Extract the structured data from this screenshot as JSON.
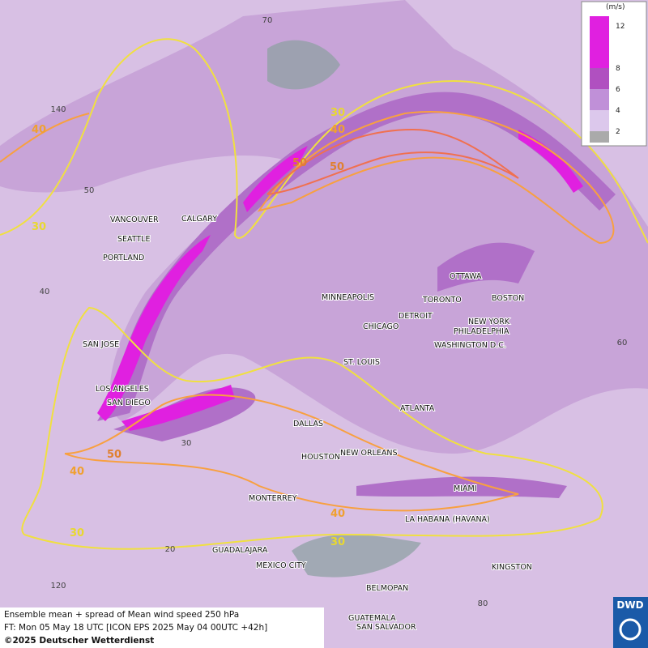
{
  "legend": {
    "unit": "(m/s)",
    "levels": [
      12,
      8,
      6,
      4,
      2
    ]
  },
  "cities": [
    "VANCOUVER",
    "CALGARY",
    "SEATTLE",
    "PORTLAND",
    "MINNEAPOLIS",
    "TORONTO",
    "OTTAWA",
    "BOSTON",
    "DETROIT",
    "CHICAGO",
    "NEW YORK",
    "PHILADELPHIA",
    "WASHINGTON D.C.",
    "SAN JOSE",
    "ST. LOUIS",
    "LOS ANGELES",
    "SAN DIEGO",
    "ATLANTA",
    "DALLAS",
    "HOUSTON",
    "NEW ORLEANS",
    "MIAMI",
    "MONTERREY",
    "LA HABANA (HAVANA)",
    "GUADALAJARA",
    "MEXICO CITY",
    "KINGSTON",
    "BELMOPAN",
    "GUATEMALA",
    "SAN SALVADOR"
  ],
  "contour_labels": [
    30,
    40,
    50,
    40,
    50,
    30,
    50,
    40,
    30,
    40,
    30
  ],
  "grid_labels": [
    70,
    140,
    50,
    40,
    60,
    30,
    20,
    120,
    80
  ],
  "footer": {
    "line1": "Ensemble mean + spread of Mean wind speed 250 hPa",
    "line2": "FT: Mon 05 May 18 UTC [ICON EPS 2025 May 04 00UTC +42h]",
    "copyright": "©2025 Deutscher Wetterdienst"
  },
  "logo": "DWD"
}
